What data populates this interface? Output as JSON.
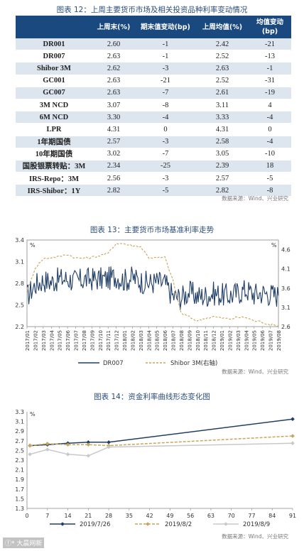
{
  "table1": {
    "title": "图表 12：上周主要货币市场及相关投资品种利率变动情况",
    "headers": [
      "",
      "上周末(%)",
      "期末值变动(bp)",
      "上周均值(%)",
      "均值变动(bp)"
    ],
    "rows": [
      [
        "DR001",
        "2.60",
        "-1",
        "2.42",
        "-21"
      ],
      [
        "DR007",
        "2.63",
        "-1",
        "2.52",
        "-13"
      ],
      [
        "Shibor 3M",
        "2.62",
        "-3",
        "2.63",
        "-1"
      ],
      [
        "GC001",
        "2.63",
        "-21",
        "2.52",
        "-31"
      ],
      [
        "GC007",
        "2.63",
        "-7",
        "2.61",
        "-19"
      ],
      [
        "3M NCD",
        "3.07",
        "-8",
        "3.11",
        "4"
      ],
      [
        "6M NCD",
        "3.30",
        "-4",
        "3.33",
        "-4"
      ],
      [
        "LPR",
        "4.31",
        "0",
        "4.31",
        "0"
      ],
      [
        "1年期国债",
        "2.57",
        "-3",
        "2.58",
        "-4"
      ],
      [
        "10年期国债",
        "3.02",
        "-7",
        "3.05",
        "-10"
      ],
      [
        "国股银票转贴：3M",
        "2.34",
        "-25",
        "2.39",
        "18"
      ],
      [
        "IRS-Repo：3M",
        "2.56",
        "-3",
        "2.57",
        "-5"
      ],
      [
        "IRS-Shibor：1Y",
        "2.82",
        "-5",
        "2.82",
        "-8"
      ]
    ],
    "source": "数据来源：Wind、兴业研究"
  },
  "chart13": {
    "title": "图表 13：主要货币市场基准利率走势",
    "source": "数据来源：Wind、兴业研究"
  },
  "chart14": {
    "title": "图表 14：资金利率曲线形态变化图",
    "source": "数据来源：Wind、兴业研究"
  },
  "watermark": "ⓕ* 大晨网新",
  "chart_data": [
    {
      "type": "line",
      "title": "图表 13：主要货币市场基准利率走势",
      "x": [
        "2017/01",
        "2017/02",
        "2017/03",
        "2017/04",
        "2017/05",
        "2017/06",
        "2017/07",
        "2017/08",
        "2017/09",
        "2017/10",
        "2017/11",
        "2017/12",
        "2018/01",
        "2018/02",
        "2018/03",
        "2018/04",
        "2018/05",
        "2018/06",
        "2018/07",
        "2018/08",
        "2018/09",
        "2018/10",
        "2018/11",
        "2018/12",
        "2019/01",
        "2019/02",
        "2019/03",
        "2019/04",
        "2019/05",
        "2019/06",
        "2019/07",
        "2019/08"
      ],
      "left_axis": {
        "unit": "%",
        "ticks": [
          "2.2",
          "2.5",
          "2.8",
          "3.1",
          "3.4"
        ],
        "ylim": [
          2.2,
          3.4
        ]
      },
      "right_axis": {
        "unit": "%",
        "ticks": [
          "2.6",
          "3.1",
          "3.6",
          "4.1",
          "4.6"
        ],
        "ylim": [
          2.6,
          4.85
        ]
      },
      "series": [
        {
          "name": "DR007",
          "axis": "left",
          "color": "#1f3e66",
          "style": "solid",
          "values": [
            2.62,
            2.78,
            2.84,
            2.82,
            2.86,
            2.86,
            2.83,
            2.85,
            2.86,
            2.86,
            2.86,
            2.9,
            2.84,
            2.88,
            2.83,
            2.8,
            2.82,
            2.8,
            2.62,
            2.6,
            2.68,
            2.62,
            2.63,
            2.66,
            2.64,
            2.63,
            2.67,
            2.71,
            2.65,
            2.67,
            2.65,
            2.63
          ]
        },
        {
          "name": "Shibor 3M(右轴)",
          "axis": "right",
          "color": "#c9a55a",
          "style": "dashed",
          "values": [
            3.5,
            4.12,
            4.36,
            4.4,
            4.42,
            4.48,
            4.38,
            4.38,
            4.4,
            4.45,
            4.5,
            4.77,
            4.75,
            4.7,
            4.68,
            4.4,
            4.38,
            4.4,
            3.8,
            2.95,
            2.85,
            2.75,
            2.82,
            2.86,
            2.82,
            2.8,
            2.84,
            2.84,
            2.75,
            2.72,
            2.65,
            2.62
          ]
        }
      ],
      "legend_position": "bottom"
    },
    {
      "type": "line",
      "title": "图表 14：资金利率曲线形态变化图",
      "x": [
        0,
        7,
        14,
        21,
        28,
        35,
        42,
        49,
        56,
        63,
        70,
        77,
        84,
        91
      ],
      "xlim": [
        0,
        91
      ],
      "ylabel": "%",
      "ylim": [
        1.3,
        3.3
      ],
      "y_ticks": [
        "1.3",
        "1.5",
        "1.7",
        "1.9",
        "2.1",
        "2.3",
        "2.5",
        "2.7",
        "2.9",
        "3.1",
        "3.3"
      ],
      "series": [
        {
          "name": "2019/7/26",
          "color": "#1f3e66",
          "style": "solid",
          "marker": "diamond",
          "x": [
            1,
            7,
            14,
            21,
            28,
            91
          ],
          "values": [
            2.6,
            2.62,
            2.65,
            2.67,
            2.67,
            3.15
          ]
        },
        {
          "name": "2019/8/2",
          "color": "#c9a55a",
          "style": "dashed",
          "marker": "diamond",
          "x": [
            1,
            7,
            14,
            21,
            28,
            91
          ],
          "values": [
            2.6,
            2.64,
            2.62,
            2.62,
            2.6,
            2.8
          ]
        },
        {
          "name": "2019/8/9",
          "color": "#c8c8c8",
          "style": "solid",
          "marker": "diamond",
          "x": [
            1,
            7,
            14,
            21,
            28,
            91
          ],
          "values": [
            2.42,
            2.52,
            2.42,
            2.39,
            2.57,
            2.65
          ]
        }
      ],
      "legend_position": "bottom"
    }
  ]
}
